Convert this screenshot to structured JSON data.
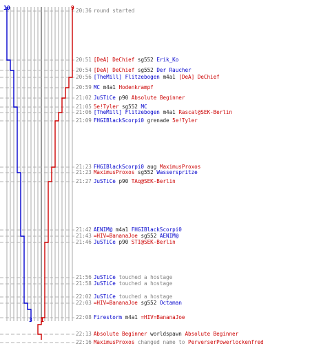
{
  "colors": {
    "blue_team": "#0000cc",
    "red_team": "#cc0000",
    "event_gray": "#808080"
  },
  "scores": {
    "blue_start": "10",
    "red_start": "9",
    "blue_end": "3",
    "red_end": "1"
  },
  "events": [
    {
      "time": "20:36",
      "parts": [
        {
          "t": "round started",
          "c": "gray"
        }
      ]
    },
    {
      "time": "20:51",
      "parts": [
        {
          "t": "[DeA] DeChief",
          "c": "red"
        },
        {
          "t": " sg552 ",
          "c": "blk"
        },
        {
          "t": "Erik_Ko",
          "c": "blue"
        }
      ]
    },
    {
      "time": "20:54",
      "parts": [
        {
          "t": "[DeA] DeChief",
          "c": "red"
        },
        {
          "t": " sg552 ",
          "c": "blk"
        },
        {
          "t": "Der Raucher",
          "c": "blue"
        }
      ]
    },
    {
      "time": "20:56",
      "parts": [
        {
          "t": "[TheMill] Flitzebogen",
          "c": "blue"
        },
        {
          "t": " m4a1 ",
          "c": "blk"
        },
        {
          "t": "[DeA] DeChief",
          "c": "red"
        }
      ]
    },
    {
      "time": "20:59",
      "parts": [
        {
          "t": "MC",
          "c": "blue"
        },
        {
          "t": " m4a1 ",
          "c": "blk"
        },
        {
          "t": "Hodenkrampf",
          "c": "red"
        }
      ]
    },
    {
      "time": "21:02",
      "parts": [
        {
          "t": "JuSTiCe",
          "c": "blue"
        },
        {
          "t": " p90 ",
          "c": "blk"
        },
        {
          "t": "Absolute Beginner",
          "c": "red"
        }
      ]
    },
    {
      "time": "21:05",
      "parts": [
        {
          "t": "5e!Tyler",
          "c": "red"
        },
        {
          "t": " sg552 ",
          "c": "blk"
        },
        {
          "t": "MC",
          "c": "blue"
        }
      ]
    },
    {
      "time": "21:06",
      "parts": [
        {
          "t": "[TheMill] Flitzebogen",
          "c": "blue"
        },
        {
          "t": " m4a1 ",
          "c": "blk"
        },
        {
          "t": "Rascal@SEK-Berlin",
          "c": "red"
        }
      ]
    },
    {
      "time": "21:09",
      "parts": [
        {
          "t": "FHGIBlackScorpi0",
          "c": "blue"
        },
        {
          "t": " grenade ",
          "c": "blk"
        },
        {
          "t": "5e!Tyler",
          "c": "red"
        }
      ]
    },
    {
      "time": "21:23",
      "parts": [
        {
          "t": "FHGIBlackScorpi0",
          "c": "blue"
        },
        {
          "t": " aug ",
          "c": "blk"
        },
        {
          "t": "MaximusProxos",
          "c": "red"
        }
      ]
    },
    {
      "time": "21:23",
      "parts": [
        {
          "t": "MaximusProxos",
          "c": "red"
        },
        {
          "t": " sg552 ",
          "c": "blk"
        },
        {
          "t": "Wasserspritze",
          "c": "blue"
        }
      ]
    },
    {
      "time": "21:27",
      "parts": [
        {
          "t": "JuSTiCe",
          "c": "blue"
        },
        {
          "t": " p90 ",
          "c": "blk"
        },
        {
          "t": "TAq@SEK-Berlin",
          "c": "red"
        }
      ]
    },
    {
      "time": "21:42",
      "parts": [
        {
          "t": "AENIM@",
          "c": "blue"
        },
        {
          "t": " m4a1 ",
          "c": "blk"
        },
        {
          "t": "FHGIBlackScorpi0",
          "c": "blue"
        }
      ]
    },
    {
      "time": "21:43",
      "parts": [
        {
          "t": "=HIV=BananaJoe",
          "c": "red"
        },
        {
          "t": " sg552 ",
          "c": "blk"
        },
        {
          "t": "AENIM@",
          "c": "blue"
        }
      ]
    },
    {
      "time": "21:46",
      "parts": [
        {
          "t": "JuSTiCe",
          "c": "blue"
        },
        {
          "t": " p90 ",
          "c": "blk"
        },
        {
          "t": "STI@SEK-Berlin",
          "c": "red"
        }
      ]
    },
    {
      "time": "21:56",
      "parts": [
        {
          "t": "JuSTiCe",
          "c": "blue"
        },
        {
          "t": " touched a hostage",
          "c": "gray"
        }
      ]
    },
    {
      "time": "21:58",
      "parts": [
        {
          "t": "JuSTiCe",
          "c": "blue"
        },
        {
          "t": " touched a hostage",
          "c": "gray"
        }
      ]
    },
    {
      "time": "22:02",
      "parts": [
        {
          "t": "JuSTiCe",
          "c": "blue"
        },
        {
          "t": " touched a hostage",
          "c": "gray"
        }
      ]
    },
    {
      "time": "22:03",
      "parts": [
        {
          "t": "=HIV=BananaJoe",
          "c": "red"
        },
        {
          "t": " sg552 ",
          "c": "blk"
        },
        {
          "t": "Octaman",
          "c": "blue"
        }
      ]
    },
    {
      "time": "22:08",
      "parts": [
        {
          "t": "Firestorm",
          "c": "blue"
        },
        {
          "t": " m4a1 ",
          "c": "blk"
        },
        {
          "t": "=HIV=BananaJoe",
          "c": "red"
        }
      ]
    },
    {
      "time": "22:13",
      "parts": [
        {
          "t": "Absolute Beginner",
          "c": "red"
        },
        {
          "t": " worldspawn ",
          "c": "blk"
        },
        {
          "t": "Absolute Beginner",
          "c": "red"
        }
      ]
    },
    {
      "time": "22:16",
      "parts": [
        {
          "t": "MaximusProxos",
          "c": "red"
        },
        {
          "t": " changed name to ",
          "c": "gray"
        },
        {
          "t": "PerverserPowerlockenfred",
          "c": "red"
        }
      ]
    }
  ]
}
